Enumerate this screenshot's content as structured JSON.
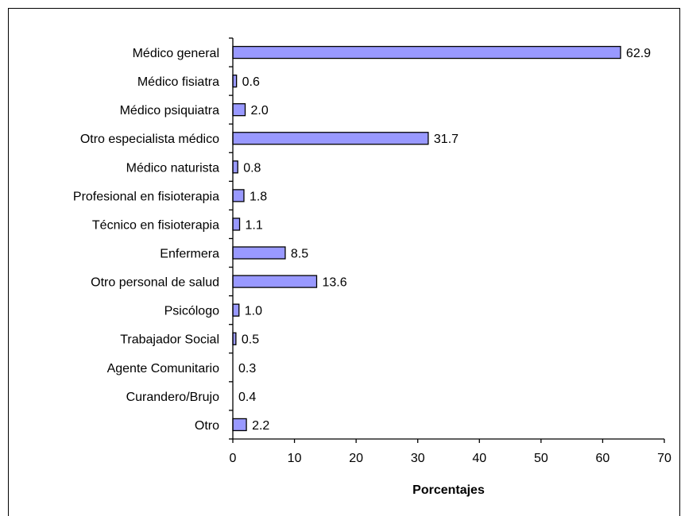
{
  "chart_data": {
    "type": "bar",
    "orientation": "horizontal",
    "title": "",
    "xlabel": "Porcentajes",
    "ylabel": "",
    "xlim": [
      0,
      70
    ],
    "x_ticks": [
      "0",
      "10",
      "20",
      "30",
      "40",
      "50",
      "60",
      "70"
    ],
    "grid": false,
    "legend": "none",
    "bar_color": "#9999ff",
    "categories": [
      "Médico general",
      "Médico fisiatra",
      "Médico psiquiatra",
      "Otro especialista médico",
      "Médico naturista",
      "Profesional en fisioterapia",
      "Técnico en fisioterapia",
      "Enfermera",
      "Otro personal de salud",
      "Psicólogo",
      "Trabajador Social",
      "Agente Comunitario",
      "Curandero/Brujo",
      "Otro"
    ],
    "values": [
      62.9,
      0.6,
      2.0,
      31.7,
      0.8,
      1.8,
      1.1,
      8.5,
      13.6,
      1.0,
      0.5,
      0.3,
      0.4,
      2.2
    ],
    "value_labels": [
      "62.9",
      "0.6",
      "2.0",
      "31.7",
      "0.8",
      "1.8",
      "1.1",
      "8.5",
      "13.6",
      "1.0",
      "0.5",
      "0.3",
      "0.4",
      "2.2"
    ]
  }
}
